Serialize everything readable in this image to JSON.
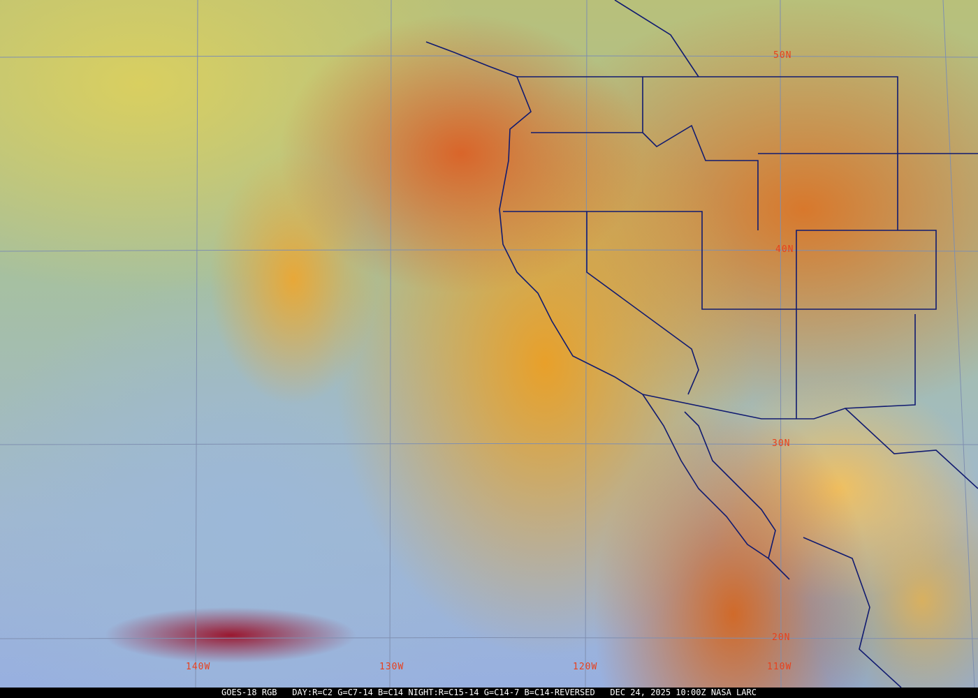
{
  "map": {
    "lat_labels": [
      "50N",
      "40N",
      "30N",
      "20N"
    ],
    "lon_labels": [
      "140W",
      "130W",
      "120W",
      "110W"
    ],
    "label_color": "#e8401c",
    "grid_color": "#7f8fb0",
    "border_color": "#101a70"
  },
  "caption": {
    "satellite": "GOES-18 RGB",
    "product": "DAY:R=C2 G=C7-14 B=C14 NIGHT:R=C15-14 G=C14-7 B=C14-REVERSED",
    "datetime": "DEC 24, 2025 10:00Z",
    "source": "NASA LARC"
  }
}
